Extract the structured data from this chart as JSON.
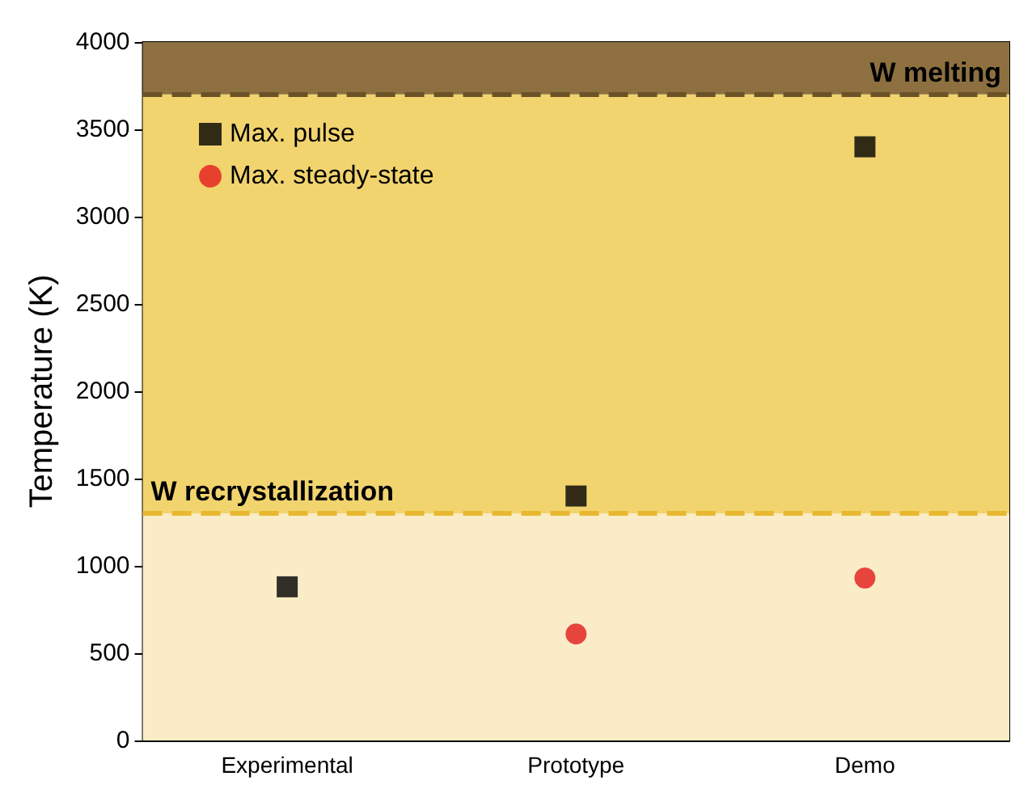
{
  "chart_data": {
    "type": "scatter",
    "ylabel": "Temperature (K)",
    "categories": [
      "Experimental",
      "Prototype",
      "Demo"
    ],
    "series": [
      {
        "name": "Max. pulse",
        "color": "#000000",
        "marker": "square",
        "values": [
          880,
          1400,
          3400
        ]
      },
      {
        "name": "Max. steady-state",
        "color": "#e41a1c",
        "marker": "circle",
        "values": [
          null,
          610,
          930
        ]
      }
    ],
    "ylim": [
      0,
      4000
    ],
    "yticks": [
      0,
      500,
      1000,
      1500,
      2000,
      2500,
      3000,
      3500,
      4000
    ],
    "bands": [
      {
        "axis": "y",
        "from": 0,
        "to": 1300,
        "color": "#f9ecc6"
      },
      {
        "axis": "y",
        "from": 1300,
        "to": 3700,
        "color": "#f2d46f"
      },
      {
        "axis": "y",
        "from": 3700,
        "to": 4000,
        "color": "#8e7040"
      }
    ],
    "ref_lines": [
      {
        "axis": "y",
        "value": 3700,
        "label": "W melting",
        "color": "#6b5327",
        "line_style": "dashed"
      },
      {
        "axis": "y",
        "value": 1300,
        "label": "W recrystallization",
        "color": "#e8b830",
        "line_style": "dashed"
      }
    ],
    "legend": "top left",
    "grid": false
  }
}
